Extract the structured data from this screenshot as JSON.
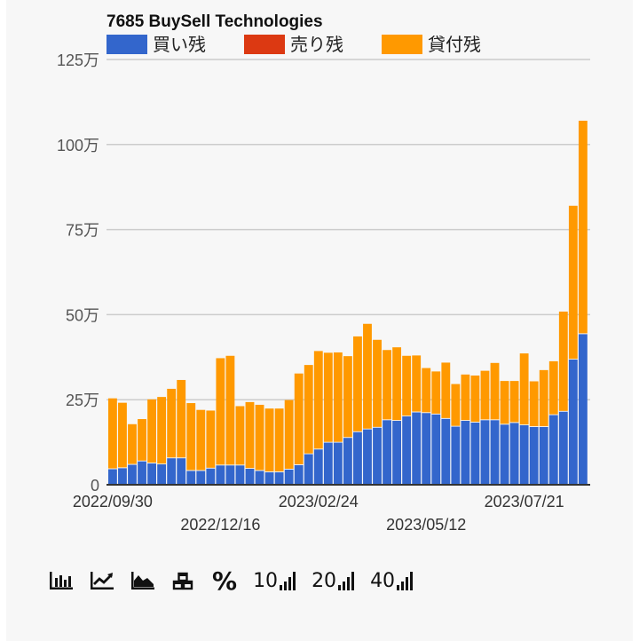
{
  "chart_data": {
    "type": "bar",
    "stacked": true,
    "title": "7685 BuySell Technologies",
    "legend": [
      "買い残",
      "売り残",
      "貸付残"
    ],
    "legend_position": "top",
    "colors": {
      "buy": "#3366cc",
      "sell": "#dc3912",
      "lend": "#ff9900",
      "grid": "#cccccc",
      "axis": "#333333"
    },
    "y_ticks": [
      0,
      25,
      50,
      75,
      100,
      125
    ],
    "y_tick_labels": [
      "0",
      "25万",
      "50万",
      "75万",
      "100万",
      "125万"
    ],
    "ylim": [
      0,
      125
    ],
    "y_unit": "万",
    "grid": true,
    "x_tick_labels": [
      {
        "index": 0,
        "label": "2022/09/30",
        "row": 0
      },
      {
        "index": 11,
        "label": "2022/12/16",
        "row": 1
      },
      {
        "index": 21,
        "label": "2023/02/24",
        "row": 0
      },
      {
        "index": 32,
        "label": "2023/05/12",
        "row": 1
      },
      {
        "index": 42,
        "label": "2023/07/21",
        "row": 0
      }
    ],
    "series": [
      {
        "name": "買い残",
        "values": [
          4.6,
          4.9,
          5.9,
          6.9,
          6.3,
          6.0,
          7.8,
          7.8,
          4.1,
          4.1,
          4.8,
          5.7,
          5.7,
          5.7,
          4.7,
          4.1,
          3.7,
          3.7,
          4.5,
          5.8,
          9.0,
          10.4,
          12.4,
          12.4,
          13.8,
          15.5,
          16.3,
          16.8,
          19.0,
          18.8,
          20.1,
          21.3,
          21.1,
          20.7,
          19.4,
          17.1,
          18.8,
          18.3,
          19.0,
          19.0,
          17.7,
          18.2,
          17.5,
          17.0,
          17.0,
          20.5,
          21.5,
          36.8,
          44.3
        ]
      },
      {
        "name": "売り残",
        "values": [
          0.2,
          0.2,
          0.2,
          0.2,
          0.2,
          0.2,
          0.2,
          0.2,
          0.2,
          0.2,
          0.2,
          0.2,
          0.2,
          0.2,
          0.2,
          0.2,
          0.2,
          0.2,
          0.2,
          0.2,
          0.2,
          0.2,
          0.2,
          0.2,
          0.2,
          0.2,
          0.2,
          0.2,
          0.2,
          0.2,
          0.2,
          0.2,
          0.2,
          0.2,
          0.2,
          0.2,
          0.2,
          0.2,
          0.2,
          0.2,
          0.2,
          0.2,
          0.2,
          0.2,
          0.2,
          0.2,
          0.2,
          0.2,
          0.2
        ]
      },
      {
        "name": "貸付残",
        "values": [
          20.6,
          19.0,
          11.7,
          12.2,
          18.6,
          19.6,
          20.2,
          22.8,
          19.7,
          17.7,
          16.8,
          31.3,
          32.0,
          17.2,
          19.4,
          19.2,
          18.5,
          18.5,
          20.2,
          26.7,
          26.0,
          28.7,
          26.2,
          26.3,
          23.8,
          27.9,
          30.8,
          25.6,
          20.4,
          21.4,
          17.6,
          16.5,
          13.0,
          12.4,
          16.3,
          12.3,
          13.4,
          13.6,
          14.3,
          16.6,
          12.6,
          12.1,
          20.9,
          13.2,
          16.5,
          15.6,
          29.2,
          45.0,
          62.5
        ]
      }
    ]
  },
  "toolbar": {
    "items": [
      {
        "name": "bar-chart-icon"
      },
      {
        "name": "line-chart-icon"
      },
      {
        "name": "area-chart-icon"
      },
      {
        "name": "stacked-boxes-icon"
      },
      {
        "name": "percent-icon",
        "glyph": "%"
      },
      {
        "name": "range-10-button",
        "label": "10"
      },
      {
        "name": "range-20-button",
        "label": "20"
      },
      {
        "name": "range-40-button",
        "label": "40"
      }
    ]
  }
}
